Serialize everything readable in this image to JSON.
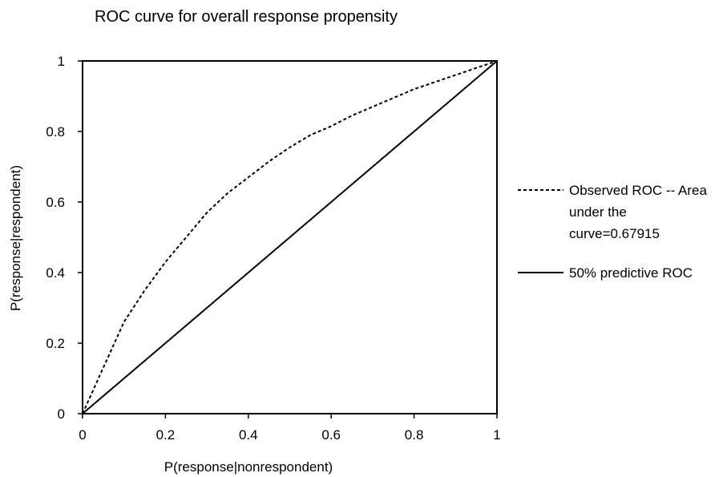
{
  "chart_data": {
    "type": "line",
    "title": "ROC curve for overall response propensity",
    "xlabel": "P(response|nonrespondent)",
    "ylabel": "P(response|respondent)",
    "xlim": [
      0,
      1
    ],
    "ylim": [
      0,
      1
    ],
    "xticks": [
      "0",
      "0.2",
      "0.4",
      "0.6",
      "0.8",
      "1"
    ],
    "yticks": [
      "0",
      "0.2",
      "0.4",
      "0.6",
      "0.8",
      "1"
    ],
    "grid": false,
    "legend_position": "right",
    "series": [
      {
        "name_lines": [
          "Observed ROC -- Area",
          "under the",
          "curve=0.67915"
        ],
        "style": "dashed",
        "color": "#000000",
        "x": [
          0,
          0.05,
          0.1,
          0.15,
          0.2,
          0.25,
          0.3,
          0.35,
          0.4,
          0.45,
          0.5,
          0.55,
          0.6,
          0.65,
          0.7,
          0.75,
          0.8,
          0.85,
          0.9,
          0.95,
          1.0
        ],
        "y": [
          0,
          0.13,
          0.26,
          0.35,
          0.43,
          0.5,
          0.57,
          0.625,
          0.67,
          0.715,
          0.755,
          0.79,
          0.815,
          0.845,
          0.87,
          0.895,
          0.92,
          0.94,
          0.96,
          0.98,
          1.0
        ]
      },
      {
        "name_lines": [
          "50% predictive ROC"
        ],
        "style": "solid",
        "color": "#000000",
        "x": [
          0,
          1
        ],
        "y": [
          0,
          1
        ]
      }
    ]
  }
}
